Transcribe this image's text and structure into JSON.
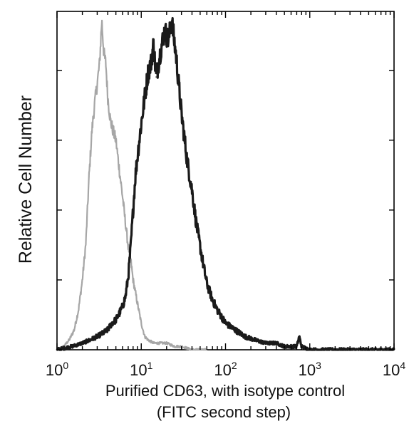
{
  "chart_data": {
    "type": "area",
    "title": "",
    "xlabel_line1": "Purified CD63, with isotype control",
    "xlabel_line2": "(FITC second step)",
    "ylabel": "Relative Cell Number",
    "x_scale": "log",
    "xlim": [
      1,
      10000
    ],
    "ylim": [
      0,
      1
    ],
    "grid": false,
    "legend": "none",
    "x_ticks": [
      {
        "value": 1,
        "base": "10",
        "exp": "0"
      },
      {
        "value": 10,
        "base": "10",
        "exp": "1"
      },
      {
        "value": 100,
        "base": "10",
        "exp": "2"
      },
      {
        "value": 1000,
        "base": "10",
        "exp": "3"
      },
      {
        "value": 10000,
        "base": "10",
        "exp": "4"
      }
    ],
    "y_ticks": [
      0,
      0.21,
      0.42,
      0.63,
      0.84
    ],
    "series": [
      {
        "role": "isotype control",
        "color": "#a6a6a6",
        "x": [
          1.0,
          1.2,
          1.4,
          1.6,
          1.8,
          2.0,
          2.2,
          2.4,
          2.6,
          2.8,
          3.0,
          3.2,
          3.4,
          3.6,
          3.8,
          4.0,
          4.3,
          4.6,
          5.0,
          5.5,
          6.0,
          6.5,
          7.0,
          7.5,
          8.0,
          9.0,
          10.0,
          11.0,
          12.0,
          14.0,
          17.0,
          20.0,
          25.0,
          30.0,
          40.0,
          50.0,
          60.0
        ],
        "y": [
          0.0,
          0.01,
          0.03,
          0.06,
          0.12,
          0.21,
          0.32,
          0.52,
          0.66,
          0.74,
          0.8,
          0.86,
          0.99,
          0.89,
          0.86,
          0.76,
          0.69,
          0.66,
          0.63,
          0.54,
          0.46,
          0.38,
          0.31,
          0.27,
          0.21,
          0.14,
          0.08,
          0.04,
          0.03,
          0.02,
          0.02,
          0.02,
          0.01,
          0.01,
          0.0,
          0.0,
          0.0
        ]
      },
      {
        "role": "Purified CD63",
        "color": "#1a1a1a",
        "x": [
          1.0,
          1.5,
          2.0,
          2.5,
          3.0,
          3.5,
          4.0,
          4.5,
          5.0,
          5.5,
          6.0,
          6.5,
          7.0,
          7.5,
          8.0,
          8.5,
          9.0,
          10.0,
          11.0,
          12.0,
          13.0,
          14.0,
          15.0,
          17.0,
          19.0,
          21.0,
          23.0,
          26.0,
          30.0,
          35.0,
          40.0,
          45.0,
          50.0,
          55.0,
          60.0,
          70.0,
          80.0,
          100.0,
          130.0,
          170.0,
          220.0,
          300.0,
          400.0,
          500.0,
          700.0,
          750.0,
          800.0,
          1000.0,
          2000.0,
          5000.0,
          10000.0
        ],
        "y": [
          0.0,
          0.01,
          0.02,
          0.03,
          0.04,
          0.05,
          0.06,
          0.08,
          0.09,
          0.11,
          0.13,
          0.16,
          0.22,
          0.31,
          0.42,
          0.52,
          0.58,
          0.68,
          0.76,
          0.83,
          0.86,
          0.92,
          0.82,
          0.9,
          0.96,
          0.93,
          0.99,
          0.88,
          0.71,
          0.57,
          0.48,
          0.38,
          0.31,
          0.25,
          0.2,
          0.15,
          0.12,
          0.08,
          0.06,
          0.04,
          0.03,
          0.02,
          0.02,
          0.01,
          0.01,
          0.04,
          0.01,
          0.0,
          0.0,
          0.0,
          0.0
        ]
      }
    ]
  }
}
